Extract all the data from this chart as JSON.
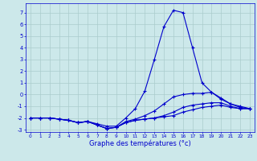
{
  "xlabel": "Graphe des températures (°c)",
  "background_color": "#cce8ea",
  "grid_color": "#aacccc",
  "line_color": "#0000cc",
  "x": [
    0,
    1,
    2,
    3,
    4,
    5,
    6,
    7,
    8,
    9,
    10,
    11,
    12,
    13,
    14,
    15,
    16,
    17,
    18,
    19,
    20,
    21,
    22,
    23
  ],
  "line1": [
    -2.0,
    -2.0,
    -2.0,
    -2.1,
    -2.2,
    -2.4,
    -2.3,
    -2.5,
    -2.7,
    -2.7,
    -2.0,
    -1.2,
    0.3,
    3.0,
    5.8,
    7.2,
    7.0,
    4.0,
    1.0,
    0.2,
    -0.3,
    -0.8,
    -1.1,
    -1.2
  ],
  "line2": [
    -2.0,
    -2.0,
    -2.0,
    -2.1,
    -2.2,
    -2.4,
    -2.3,
    -2.6,
    -2.9,
    -2.8,
    -2.3,
    -2.1,
    -1.8,
    -1.4,
    -0.8,
    -0.2,
    0.0,
    0.1,
    0.1,
    0.2,
    -0.4,
    -0.8,
    -1.0,
    -1.2
  ],
  "line3": [
    -2.0,
    -2.0,
    -2.0,
    -2.1,
    -2.2,
    -2.4,
    -2.3,
    -2.6,
    -2.9,
    -2.8,
    -2.4,
    -2.2,
    -2.1,
    -2.0,
    -1.8,
    -1.5,
    -1.1,
    -0.9,
    -0.8,
    -0.7,
    -0.7,
    -1.0,
    -1.2,
    -1.2
  ],
  "line4": [
    -2.0,
    -2.0,
    -2.0,
    -2.1,
    -2.2,
    -2.4,
    -2.3,
    -2.6,
    -2.9,
    -2.8,
    -2.4,
    -2.2,
    -2.1,
    -2.0,
    -1.9,
    -1.8,
    -1.5,
    -1.3,
    -1.1,
    -1.0,
    -0.9,
    -1.1,
    -1.2,
    -1.2
  ],
  "ylim": [
    -3.2,
    7.8
  ],
  "xlim": [
    -0.5,
    23.5
  ],
  "yticks": [
    -3,
    -2,
    -1,
    0,
    1,
    2,
    3,
    4,
    5,
    6,
    7
  ],
  "xticks": [
    0,
    1,
    2,
    3,
    4,
    5,
    6,
    7,
    8,
    9,
    10,
    11,
    12,
    13,
    14,
    15,
    16,
    17,
    18,
    19,
    20,
    21,
    22,
    23
  ]
}
